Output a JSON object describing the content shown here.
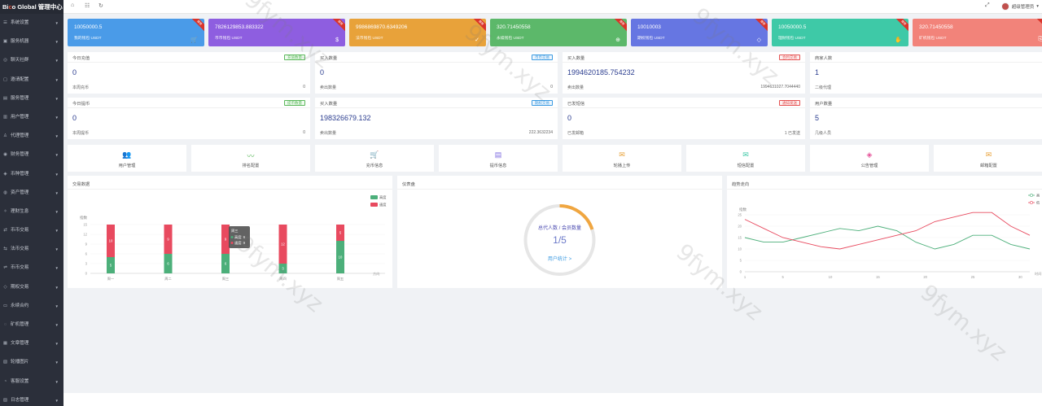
{
  "app": {
    "logo_prefix": "Bi",
    "logo_accent": "c",
    "logo_rest": "o Global 管理中心"
  },
  "sidebar": {
    "items": [
      {
        "label": "系统设置",
        "icon": "☰"
      },
      {
        "label": "服务机器",
        "icon": "▣"
      },
      {
        "label": "聊天社群",
        "icon": "◎"
      },
      {
        "label": "邀请配置",
        "icon": "▢"
      },
      {
        "label": "服务管理",
        "icon": "▤"
      },
      {
        "label": "用户管理",
        "icon": "▥"
      },
      {
        "label": "代理管理",
        "icon": "♙"
      },
      {
        "label": "财务管理",
        "icon": "◉"
      },
      {
        "label": "币种管理",
        "icon": "◈"
      },
      {
        "label": "资产管理",
        "icon": "◍"
      },
      {
        "label": "理财生息",
        "icon": "✧"
      },
      {
        "label": "币币交易",
        "icon": "⇄"
      },
      {
        "label": "法币交易",
        "icon": "⇆"
      },
      {
        "label": "币币交易",
        "icon": "⇌"
      },
      {
        "label": "期权交易",
        "icon": "◇"
      },
      {
        "label": "永续合约",
        "icon": "▭"
      },
      {
        "label": "矿机管理",
        "icon": "◌"
      },
      {
        "label": "文章管理",
        "icon": "▦"
      },
      {
        "label": "轮播图片",
        "icon": "▧"
      },
      {
        "label": "客服设置",
        "icon": "◔"
      },
      {
        "label": "日志管理",
        "icon": "▨"
      }
    ]
  },
  "topbar": {
    "user_name": "超级管理员"
  },
  "stat_cards": [
    {
      "value": "10050000.5",
      "label": "我的钱包 USDT",
      "color": "#4a9be8",
      "icon": "🛒",
      "ribbon": "推荐"
    },
    {
      "value": "7826129853.883322",
      "label": "币币钱包 USDT",
      "color": "#8e5ee0",
      "icon": "$",
      "ribbon": "推荐"
    },
    {
      "value": "9986869870.6349206",
      "label": "法币钱包 USDT",
      "color": "#e8a23a",
      "icon": "✓",
      "ribbon": "推荐"
    },
    {
      "value": "320.71450558",
      "label": "永续钱包 USDT",
      "color": "#5cb86a",
      "icon": "⊕",
      "ribbon": "推荐"
    },
    {
      "value": "10010003",
      "label": "期权钱包 USDT",
      "color": "#6676e2",
      "icon": "◇",
      "ribbon": "推荐"
    },
    {
      "value": "10050000.5",
      "label": "理财钱包 USDT",
      "color": "#3ec9a7",
      "icon": "✋",
      "ribbon": "推荐"
    },
    {
      "value": "320.71450558",
      "label": "矿机钱包 USDT",
      "color": "#f2837a",
      "icon": "⎘",
      "ribbon": "推荐"
    }
  ],
  "stat_panels_row1": [
    {
      "title": "今日充值",
      "badge": "充值数量",
      "badge_type": "green",
      "value": "0",
      "sub_label": "本周充币",
      "sub_value": "0"
    },
    {
      "title": "买入数量",
      "badge": "币币交易",
      "badge_type": "blue",
      "value": "0",
      "sub_label": "卖出数量",
      "sub_value": "0"
    },
    {
      "title": "买入数量",
      "badge": "合约交易",
      "badge_type": "red",
      "value": "1994620185.754232",
      "sub_label": "卖出数量",
      "sub_value": "1994631027.7044440"
    },
    {
      "title": "商家人数",
      "badge": "",
      "badge_type": "",
      "value": "1",
      "sub_label": "二级代理",
      "sub_value": ""
    }
  ],
  "stat_panels_row2": [
    {
      "title": "今日提币",
      "badge": "提币数量",
      "badge_type": "green",
      "value": "0",
      "sub_label": "本周提币",
      "sub_value": "0"
    },
    {
      "title": "买入数量",
      "badge": "期权交易",
      "badge_type": "blue",
      "value": "198326679.132",
      "sub_label": "卖出数量",
      "sub_value": "222.3632234"
    },
    {
      "title": "已发短信",
      "badge": "通知发送",
      "badge_type": "red",
      "value": "0",
      "sub_label": "已发邮箱",
      "sub_value": "1 已发送"
    },
    {
      "title": "用户数量",
      "badge": "",
      "badge_type": "",
      "value": "5",
      "sub_label": "几级人员",
      "sub_value": ""
    }
  ],
  "quick_links": [
    {
      "label": "用户管理",
      "icon": "👥",
      "color": "#3b8de0"
    },
    {
      "label": "排名配置",
      "icon": "〰",
      "color": "#5cb85c"
    },
    {
      "label": "充币信息",
      "icon": "🛒",
      "color": "#e55353"
    },
    {
      "label": "提币信息",
      "icon": "▤",
      "color": "#7e6be0"
    },
    {
      "label": "轮播上传",
      "icon": "✉",
      "color": "#e8a23a"
    },
    {
      "label": "短信配置",
      "icon": "✉",
      "color": "#3ec9a7"
    },
    {
      "label": "公告管理",
      "icon": "◈",
      "color": "#e55399"
    },
    {
      "label": "邮箱配置",
      "icon": "✉",
      "color": "#e8a23a"
    }
  ],
  "charts": {
    "bar_title": "交易数据",
    "gauge_title": "仪表盘",
    "line_title": "趋势走向"
  },
  "chart_data": [
    {
      "type": "bar",
      "title": "交易数据",
      "ylabel": "指数",
      "xlabel": "方向",
      "categories": [
        "周一",
        "周二",
        "周三",
        "周四",
        "周五"
      ],
      "ylim": [
        0,
        15
      ],
      "yticks": [
        0,
        3,
        6,
        9,
        12,
        15
      ],
      "stacked": true,
      "legend": "top-right",
      "series": [
        {
          "name": "高度",
          "color": "#4caf7a",
          "values": [
            5,
            6,
            6,
            3,
            10
          ]
        },
        {
          "name": "速度",
          "color": "#e84a5f",
          "values": [
            10,
            9,
            9,
            12,
            5
          ]
        }
      ],
      "tooltip": {
        "title": "周三",
        "lines": [
          "高度: 6",
          "速度: 9"
        ]
      }
    },
    {
      "type": "gauge",
      "title": "仪表盘",
      "label": "总代人数 / 会员数量",
      "value_text": "1/5",
      "fraction": 0.2,
      "link": "用户统计 >"
    },
    {
      "type": "line",
      "title": "趋势走向",
      "ylabel": "指数",
      "xlabel": "时间",
      "ylim": [
        0,
        25
      ],
      "yticks": [
        0,
        5,
        10,
        15,
        20,
        25
      ],
      "x": [
        1,
        3,
        5,
        7,
        9,
        11,
        13,
        15,
        17,
        19,
        21,
        23,
        25,
        27,
        29,
        31
      ],
      "xticks": [
        1,
        5,
        10,
        15,
        20,
        25,
        30
      ],
      "legend": "top-right",
      "series": [
        {
          "name": "高",
          "color": "#4caf7a",
          "values": [
            15,
            13,
            13,
            15,
            17,
            19,
            18,
            20,
            18,
            13,
            10,
            12,
            16,
            16,
            12,
            10
          ]
        },
        {
          "name": "低",
          "color": "#e84a5f",
          "values": [
            23,
            19,
            15,
            13,
            11,
            10,
            12,
            14,
            16,
            18,
            22,
            24,
            26,
            26,
            20,
            16
          ]
        }
      ]
    }
  ]
}
